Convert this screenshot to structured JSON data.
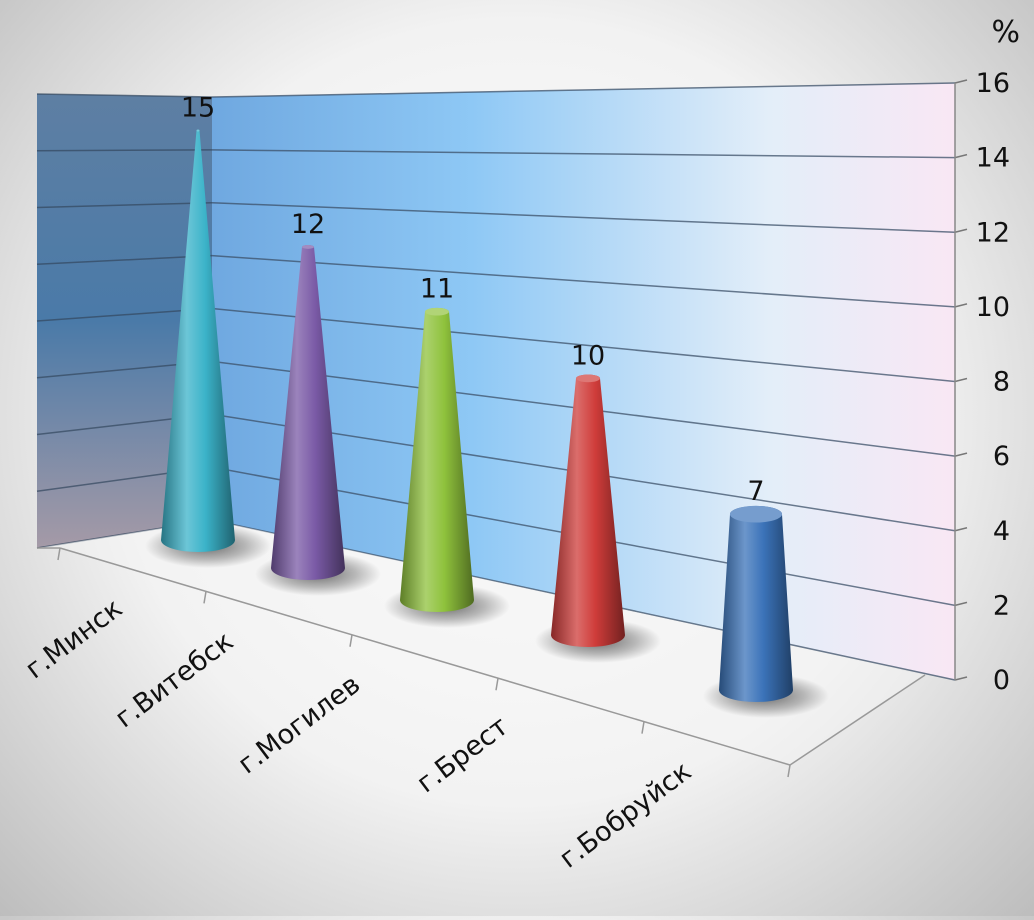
{
  "chart_data": {
    "type": "bar",
    "style": "3d-cone",
    "categories": [
      "г.Минск",
      "г.Витебск",
      "г.Могилев",
      "г.Брест",
      "г.Бобруйск"
    ],
    "values": [
      15,
      12,
      11,
      10,
      7
    ],
    "data_labels": [
      "15",
      "12",
      "11",
      "10",
      "7"
    ],
    "unit": "%",
    "y_ticks": [
      "0",
      "2",
      "4",
      "6",
      "8",
      "10",
      "12",
      "14",
      "16"
    ],
    "ylim": [
      0,
      16
    ],
    "grid": true,
    "legend": "none",
    "colors": [
      "#3bb3c9",
      "#7a5aa6",
      "#8fc23c",
      "#cf3c3a",
      "#3b73b9"
    ],
    "wall_colors": [
      "#4a6f94",
      "#8cc6ef",
      "#f7e6f2"
    ]
  }
}
